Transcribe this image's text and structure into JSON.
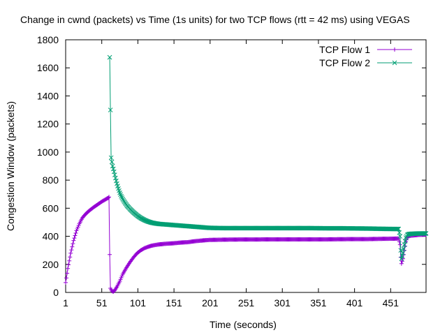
{
  "chart_data": {
    "type": "line",
    "title": "Change in cwnd (packets) vs Time (1s units) for two TCP flows (rtt = 42 ms) using VEGAS",
    "xlabel": "Time (seconds)",
    "ylabel": "Congestion Window (packets)",
    "xlim": [
      1,
      500
    ],
    "ylim": [
      0,
      1800
    ],
    "x_ticks": [
      1,
      51,
      101,
      151,
      201,
      251,
      301,
      351,
      401,
      451
    ],
    "y_ticks": [
      0,
      200,
      400,
      600,
      800,
      1000,
      1200,
      1400,
      1600,
      1800
    ],
    "grid": false,
    "legend_position": "top-right",
    "series": [
      {
        "name": "TCP Flow 1",
        "color": "#9400d3",
        "marker": "plus",
        "points": [
          [
            1,
            70
          ],
          [
            4,
            170
          ],
          [
            8,
            280
          ],
          [
            12,
            370
          ],
          [
            16,
            440
          ],
          [
            20,
            490
          ],
          [
            24,
            530
          ],
          [
            28,
            555
          ],
          [
            32,
            575
          ],
          [
            36,
            592
          ],
          [
            40,
            608
          ],
          [
            44,
            622
          ],
          [
            48,
            636
          ],
          [
            52,
            650
          ],
          [
            56,
            662
          ],
          [
            60,
            674
          ],
          [
            61,
            680
          ],
          [
            62,
            270
          ],
          [
            63,
            30
          ],
          [
            65,
            10
          ],
          [
            67,
            5
          ],
          [
            69,
            15
          ],
          [
            72,
            40
          ],
          [
            76,
            80
          ],
          [
            80,
            130
          ],
          [
            85,
            175
          ],
          [
            90,
            215
          ],
          [
            95,
            250
          ],
          [
            100,
            280
          ],
          [
            105,
            300
          ],
          [
            110,
            315
          ],
          [
            115,
            325
          ],
          [
            120,
            333
          ],
          [
            125,
            338
          ],
          [
            130,
            342
          ],
          [
            140,
            347
          ],
          [
            150,
            350
          ],
          [
            160,
            355
          ],
          [
            170,
            358
          ],
          [
            180,
            365
          ],
          [
            190,
            370
          ],
          [
            200,
            374
          ],
          [
            220,
            376
          ],
          [
            240,
            377
          ],
          [
            260,
            377
          ],
          [
            280,
            378
          ],
          [
            300,
            378
          ],
          [
            320,
            378
          ],
          [
            340,
            378
          ],
          [
            360,
            378
          ],
          [
            380,
            379
          ],
          [
            400,
            380
          ],
          [
            420,
            380
          ],
          [
            440,
            382
          ],
          [
            455,
            383
          ],
          [
            462,
            384
          ],
          [
            464,
            340
          ],
          [
            465,
            250
          ],
          [
            466,
            205
          ],
          [
            468,
            240
          ],
          [
            470,
            300
          ],
          [
            472,
            360
          ],
          [
            474,
            390
          ],
          [
            476,
            400
          ],
          [
            480,
            405
          ],
          [
            490,
            410
          ],
          [
            500,
            412
          ]
        ]
      },
      {
        "name": "TCP Flow 2",
        "color": "#009e73",
        "marker": "cross",
        "points": [
          [
            62,
            1675
          ],
          [
            63,
            1300
          ],
          [
            64,
            960
          ],
          [
            66,
            900
          ],
          [
            68,
            860
          ],
          [
            70,
            815
          ],
          [
            72,
            775
          ],
          [
            74,
            740
          ],
          [
            76,
            710
          ],
          [
            78,
            685
          ],
          [
            80,
            665
          ],
          [
            83,
            640
          ],
          [
            86,
            618
          ],
          [
            90,
            595
          ],
          [
            95,
            570
          ],
          [
            100,
            548
          ],
          [
            105,
            530
          ],
          [
            110,
            516
          ],
          [
            115,
            505
          ],
          [
            120,
            497
          ],
          [
            125,
            492
          ],
          [
            130,
            488
          ],
          [
            140,
            484
          ],
          [
            150,
            480
          ],
          [
            160,
            476
          ],
          [
            170,
            472
          ],
          [
            180,
            468
          ],
          [
            190,
            464
          ],
          [
            200,
            460
          ],
          [
            220,
            458
          ],
          [
            240,
            458
          ],
          [
            260,
            458
          ],
          [
            280,
            458
          ],
          [
            300,
            458
          ],
          [
            320,
            458
          ],
          [
            340,
            458
          ],
          [
            360,
            457
          ],
          [
            380,
            457
          ],
          [
            400,
            456
          ],
          [
            420,
            455
          ],
          [
            440,
            453
          ],
          [
            455,
            452
          ],
          [
            462,
            452
          ],
          [
            464,
            400
          ],
          [
            465,
            300
          ],
          [
            466,
            240
          ],
          [
            468,
            280
          ],
          [
            470,
            340
          ],
          [
            472,
            390
          ],
          [
            474,
            410
          ],
          [
            476,
            415
          ],
          [
            480,
            418
          ],
          [
            490,
            420
          ],
          [
            500,
            420
          ]
        ]
      }
    ]
  }
}
